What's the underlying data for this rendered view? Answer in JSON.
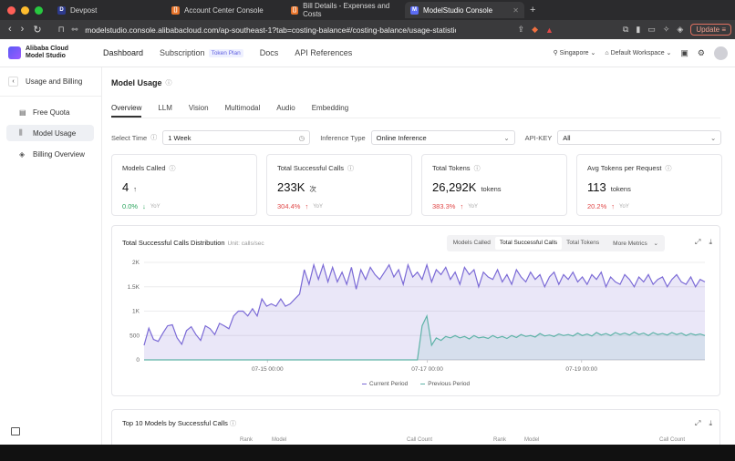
{
  "browser": {
    "tabs": [
      {
        "label": "Devpost",
        "favicon": "D",
        "favicon_color": "#2d3a8c",
        "active": false
      },
      {
        "label": "Account Center Console",
        "favicon": "[]",
        "favicon_color": "#e8742a",
        "active": false
      },
      {
        "label": "Bill Details - Expenses and Costs",
        "favicon": "[]",
        "favicon_color": "#e8742a",
        "active": false
      },
      {
        "label": "ModelStudio Console",
        "favicon": "M",
        "favicon_color": "#5b6cf5",
        "active": true
      }
    ],
    "url": "modelstudio.console.alibabacloud.com/ap-southeast-1?tab=costing-balance#/costing-balance/usage-statistics",
    "update_label": "Update"
  },
  "topnav": {
    "logo_line1": "Alibaba Cloud",
    "logo_line2": "Model Studio",
    "links": [
      "Dashboard",
      "Subscription",
      "Docs",
      "API References"
    ],
    "token_plan_badge": "Token Plan",
    "region": "Singapore",
    "workspace": "Default Workspace"
  },
  "sidebar": {
    "back_label": "Usage and Billing",
    "items": [
      {
        "label": "Free Quota",
        "icon": "list-icon"
      },
      {
        "label": "Model Usage",
        "icon": "bar-chart-icon",
        "active": true
      },
      {
        "label": "Billing Overview",
        "icon": "layers-icon"
      }
    ]
  },
  "main": {
    "title": "Model Usage",
    "subtabs": [
      "Overview",
      "LLM",
      "Vision",
      "Multimodal",
      "Audio",
      "Embedding"
    ],
    "filters": {
      "time_label": "Select Time",
      "time_value": "1 Week",
      "inference_label": "Inference Type",
      "inference_value": "Online Inference",
      "apikey_label": "API-KEY",
      "apikey_value": "All"
    },
    "cards": [
      {
        "title": "Models Called",
        "value": "4",
        "unit": "",
        "trend": "up",
        "yoy": "0.0%",
        "yoy_dir": "down",
        "yoy_color": "#27a35a"
      },
      {
        "title": "Total Successful Calls",
        "value": "233K",
        "unit": "次",
        "trend": "",
        "yoy": "304.4%",
        "yoy_dir": "up",
        "yoy_color": "#e04848"
      },
      {
        "title": "Total Tokens",
        "value": "26,292K",
        "unit": "tokens",
        "trend": "",
        "yoy": "383.3%",
        "yoy_dir": "up",
        "yoy_color": "#e04848"
      },
      {
        "title": "Avg Tokens per Request",
        "value": "113",
        "unit": "tokens",
        "trend": "",
        "yoy": "20.2%",
        "yoy_dir": "up",
        "yoy_color": "#e04848"
      }
    ],
    "yoy_label": "YoY",
    "chart_title": "Total Successful Calls Distribution",
    "chart_unit": "Unit: calls/sec",
    "metric_tabs": [
      "Models Called",
      "Total Successful Calls",
      "Total Tokens",
      "More Metrics"
    ],
    "top10_title": "Top 10 Models by Successful Calls",
    "top10_cols": [
      "Rank",
      "Model",
      "Call Count",
      "Rank",
      "Model",
      "Call Count"
    ]
  },
  "chart_data": {
    "type": "area",
    "title": "Total Successful Calls Distribution",
    "ylabel": "Unit: calls/sec",
    "ylim": [
      0,
      2000
    ],
    "yticks": [
      "0",
      "500",
      "1K",
      "1.5K",
      "2K"
    ],
    "xticks": [
      "07-15 00:00",
      "07-17 00:00",
      "07-19 00:00"
    ],
    "grid": true,
    "legend_position": "bottom",
    "series": [
      {
        "name": "Current Period",
        "color": "#7b6ad6",
        "values": [
          300,
          650,
          420,
          380,
          550,
          700,
          720,
          450,
          320,
          600,
          680,
          520,
          400,
          700,
          640,
          520,
          750,
          700,
          640,
          900,
          1000,
          1000,
          900,
          1050,
          900,
          1250,
          1100,
          1150,
          1100,
          1250,
          1100,
          1150,
          1250,
          1350,
          1850,
          1550,
          1950,
          1650,
          1950,
          1600,
          1900,
          1600,
          1800,
          1550,
          1900,
          1450,
          1850,
          1650,
          1900,
          1750,
          1650,
          1800,
          1950,
          1700,
          1850,
          1550,
          1950,
          1700,
          1800,
          1650,
          1950,
          1600,
          1850,
          1750,
          1900,
          1650,
          1800,
          1550,
          1900,
          1750,
          1850,
          1500,
          1800,
          1700,
          1650,
          1850,
          1600,
          1750,
          1550,
          1850,
          1700,
          1600,
          1800,
          1650,
          1750,
          1500,
          1700,
          1800,
          1550,
          1750,
          1650,
          1800,
          1600,
          1700,
          1550,
          1750,
          1650,
          1800,
          1500,
          1700,
          1600,
          1550,
          1750,
          1650,
          1500,
          1700,
          1600,
          1750,
          1550,
          1650,
          1700,
          1500,
          1650,
          1750,
          1600,
          1550,
          1700,
          1500,
          1650,
          1600
        ]
      },
      {
        "name": "Previous Period",
        "color": "#5fb3a8",
        "values": [
          0,
          0,
          0,
          0,
          0,
          0,
          0,
          0,
          0,
          0,
          0,
          0,
          0,
          0,
          0,
          0,
          0,
          0,
          0,
          0,
          0,
          0,
          0,
          0,
          0,
          0,
          0,
          0,
          0,
          0,
          0,
          0,
          0,
          0,
          0,
          0,
          0,
          0,
          0,
          0,
          0,
          0,
          0,
          0,
          0,
          0,
          0,
          0,
          0,
          0,
          0,
          0,
          0,
          0,
          0,
          0,
          0,
          0,
          0,
          700,
          900,
          300,
          450,
          400,
          480,
          450,
          500,
          450,
          480,
          430,
          500,
          450,
          470,
          440,
          500,
          450,
          480,
          440,
          500,
          460,
          520,
          480,
          500,
          470,
          540,
          490,
          510,
          480,
          530,
          500,
          520,
          490,
          550,
          500,
          530,
          490,
          560,
          510,
          540,
          500,
          560,
          520,
          550,
          510,
          570,
          520,
          550,
          500,
          560,
          520,
          540,
          510,
          560,
          520,
          550,
          500,
          540,
          510,
          530,
          500
        ]
      }
    ]
  }
}
